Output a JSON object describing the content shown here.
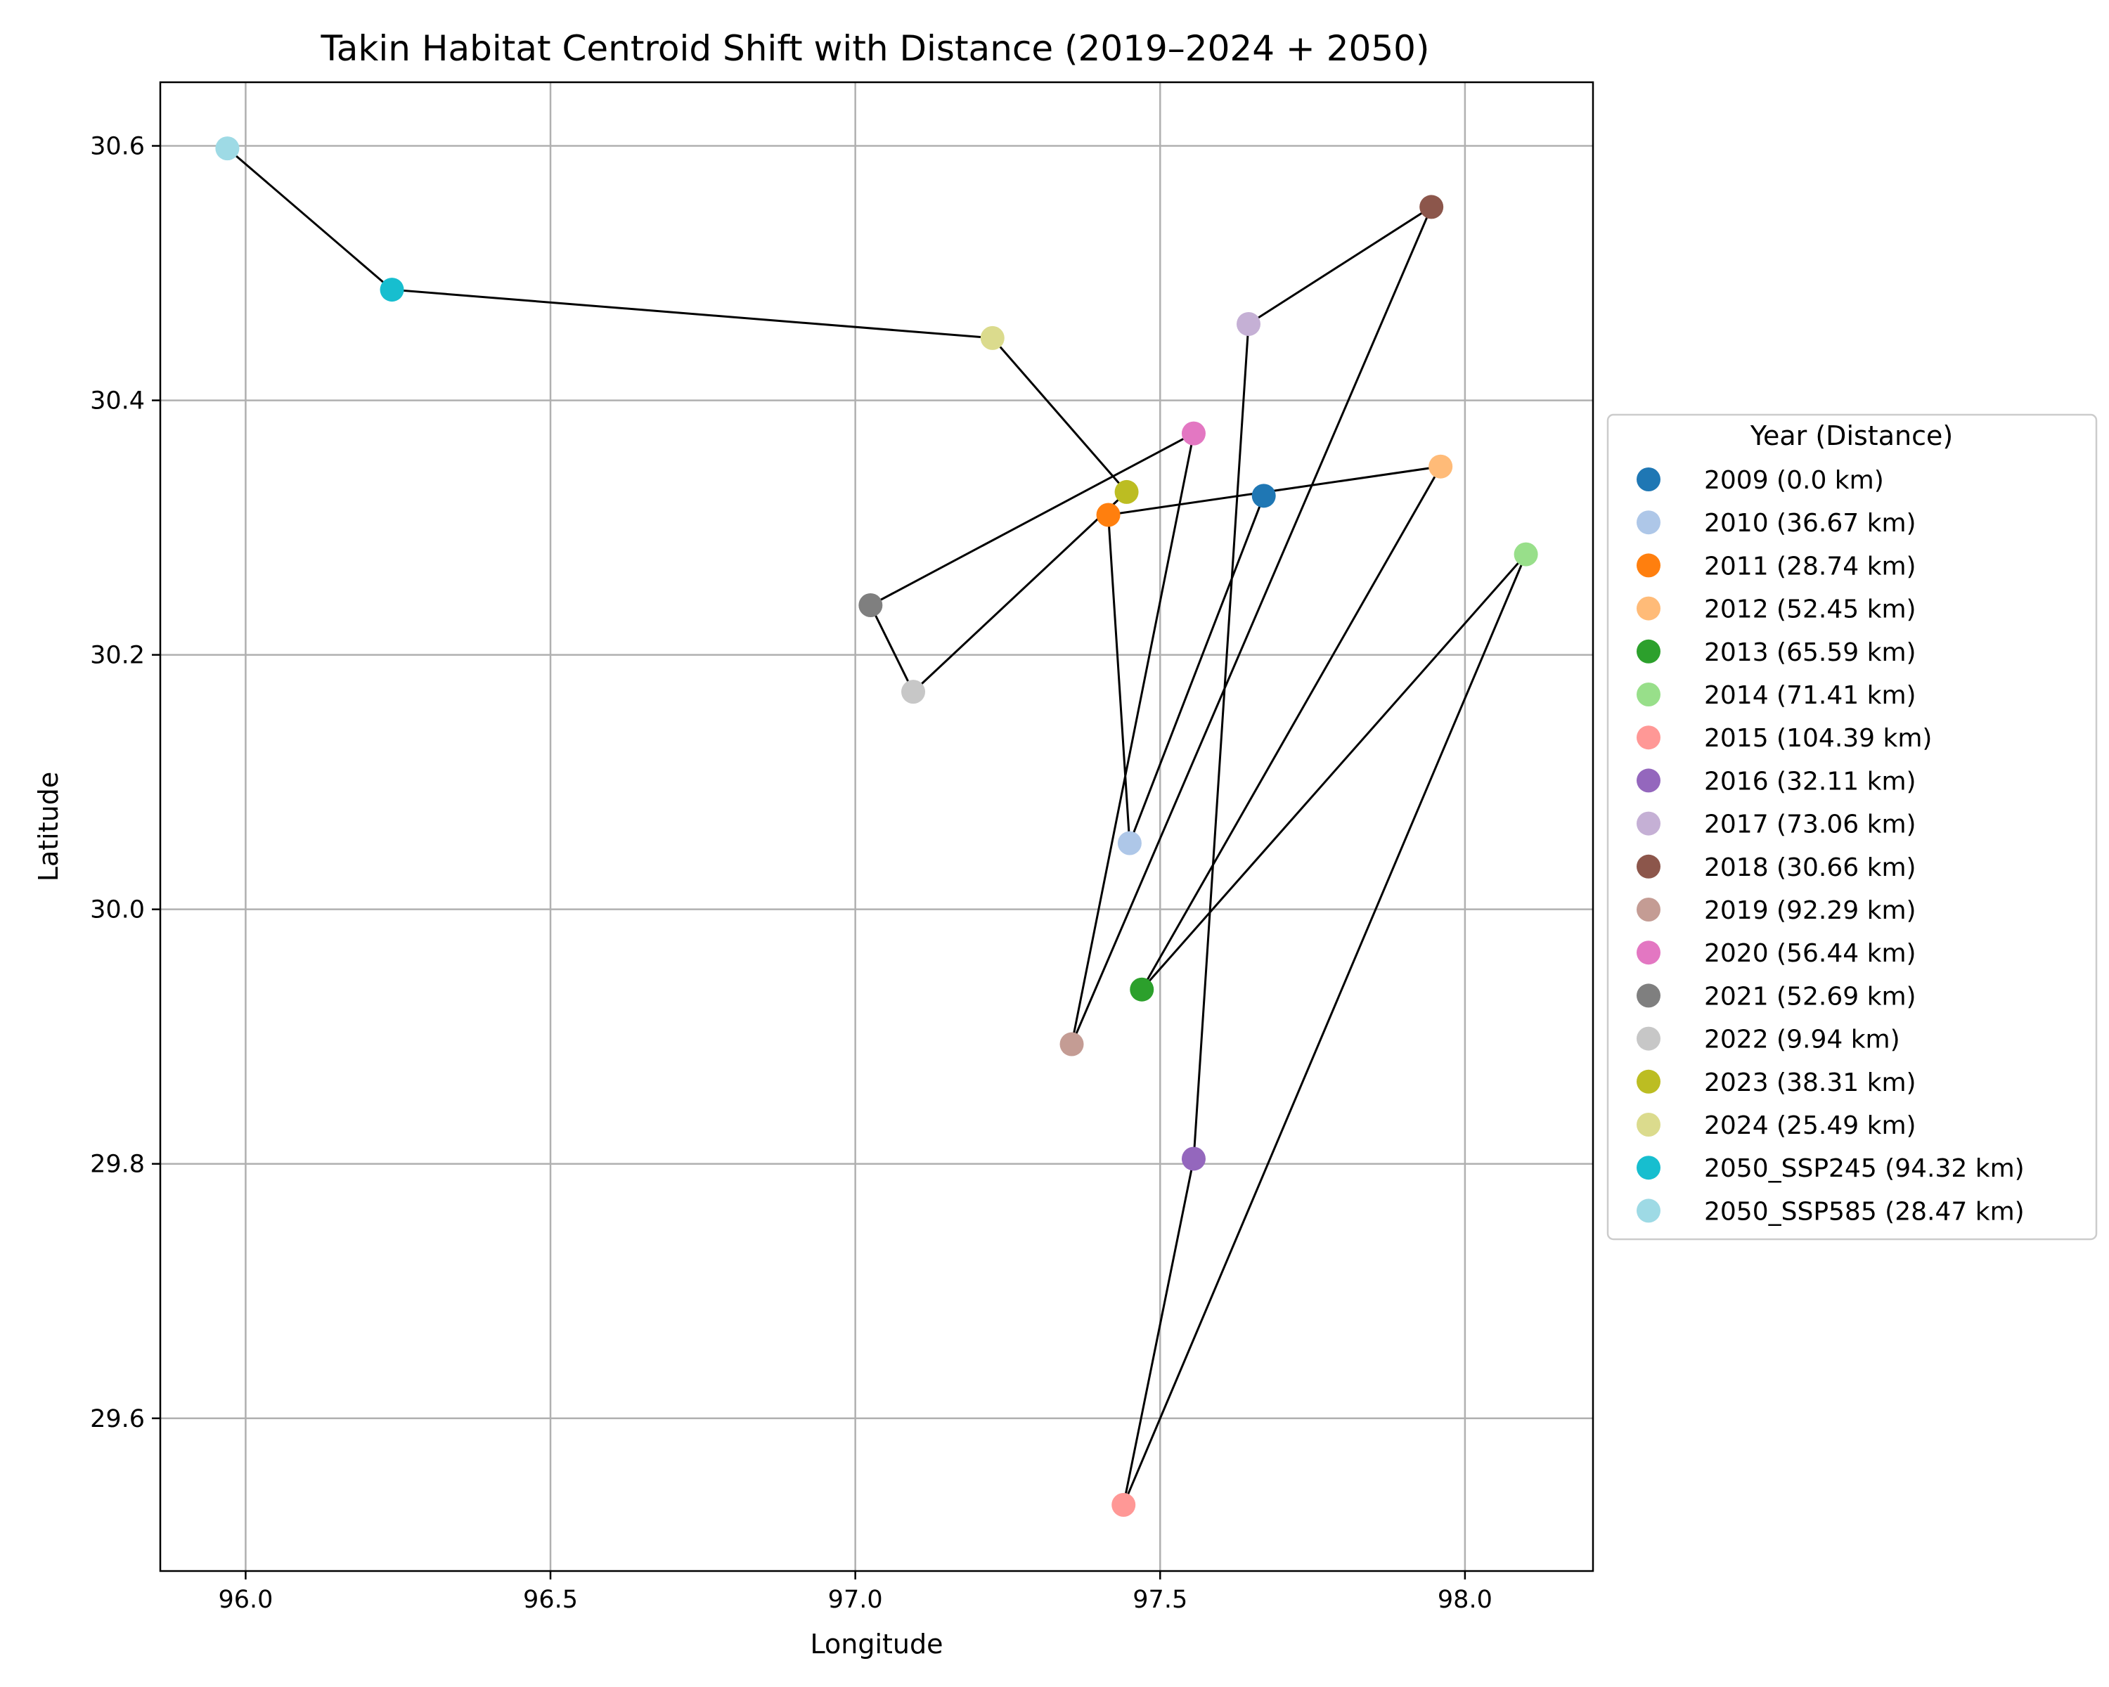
{
  "chart_data": {
    "type": "scatter",
    "title": "Takin Habitat Centroid Shift with Distance (2019–2024 + 2050)",
    "xlabel": "Longitude",
    "ylabel": "Latitude",
    "xlim": [
      95.86,
      98.21
    ],
    "ylim": [
      29.48,
      30.65
    ],
    "xticks": [
      "96.0",
      "96.5",
      "97.0",
      "97.5",
      "98.0"
    ],
    "yticks": [
      "29.6",
      "29.8",
      "30.0",
      "30.2",
      "30.4",
      "30.6"
    ],
    "grid": true,
    "connecting_line": true,
    "legend_title": "Year (Distance)",
    "legend_position": "right, outside plot area",
    "points": [
      {
        "label": "2009 (0.0 km)",
        "x": 97.67,
        "y": 30.325,
        "color": "#1f77b4"
      },
      {
        "label": "2010 (36.67 km)",
        "x": 97.45,
        "y": 30.052,
        "color": "#aec7e8"
      },
      {
        "label": "2011 (28.74 km)",
        "x": 97.415,
        "y": 30.31,
        "color": "#ff7f0e"
      },
      {
        "label": "2012 (52.45 km)",
        "x": 97.96,
        "y": 30.348,
        "color": "#ffbb78"
      },
      {
        "label": "2013 (65.59 km)",
        "x": 97.47,
        "y": 29.937,
        "color": "#2ca02c"
      },
      {
        "label": "2014 (71.41 km)",
        "x": 98.1,
        "y": 30.279,
        "color": "#98df8a"
      },
      {
        "label": "2015 (104.39 km)",
        "x": 97.44,
        "y": 29.532,
        "color": "#ff9896"
      },
      {
        "label": "2016 (32.11 km)",
        "x": 97.555,
        "y": 29.804,
        "color": "#9467bd"
      },
      {
        "label": "2017 (73.06 km)",
        "x": 97.645,
        "y": 30.46,
        "color": "#c5b0d5"
      },
      {
        "label": "2018 (30.66 km)",
        "x": 97.945,
        "y": 30.552,
        "color": "#8c564b"
      },
      {
        "label": "2019 (92.29 km)",
        "x": 97.355,
        "y": 29.894,
        "color": "#c49c94"
      },
      {
        "label": "2020 (56.44 km)",
        "x": 97.555,
        "y": 30.374,
        "color": "#e377c2"
      },
      {
        "label": "2021 (52.69 km)",
        "x": 97.025,
        "y": 30.239,
        "color": "#7f7f7f"
      },
      {
        "label": "2022 (9.94 km)",
        "x": 97.095,
        "y": 30.171,
        "color": "#c7c7c7"
      },
      {
        "label": "2023 (38.31 km)",
        "x": 97.445,
        "y": 30.328,
        "color": "#bcbd22"
      },
      {
        "label": "2024 (25.49 km)",
        "x": 97.225,
        "y": 30.449,
        "color": "#dbdb8d"
      },
      {
        "label": "2050_SSP245 (94.32 km)",
        "x": 96.24,
        "y": 30.487,
        "color": "#17becf"
      },
      {
        "label": "2050_SSP585 (28.47 km)",
        "x": 95.97,
        "y": 30.598,
        "color": "#9edae5"
      }
    ]
  }
}
